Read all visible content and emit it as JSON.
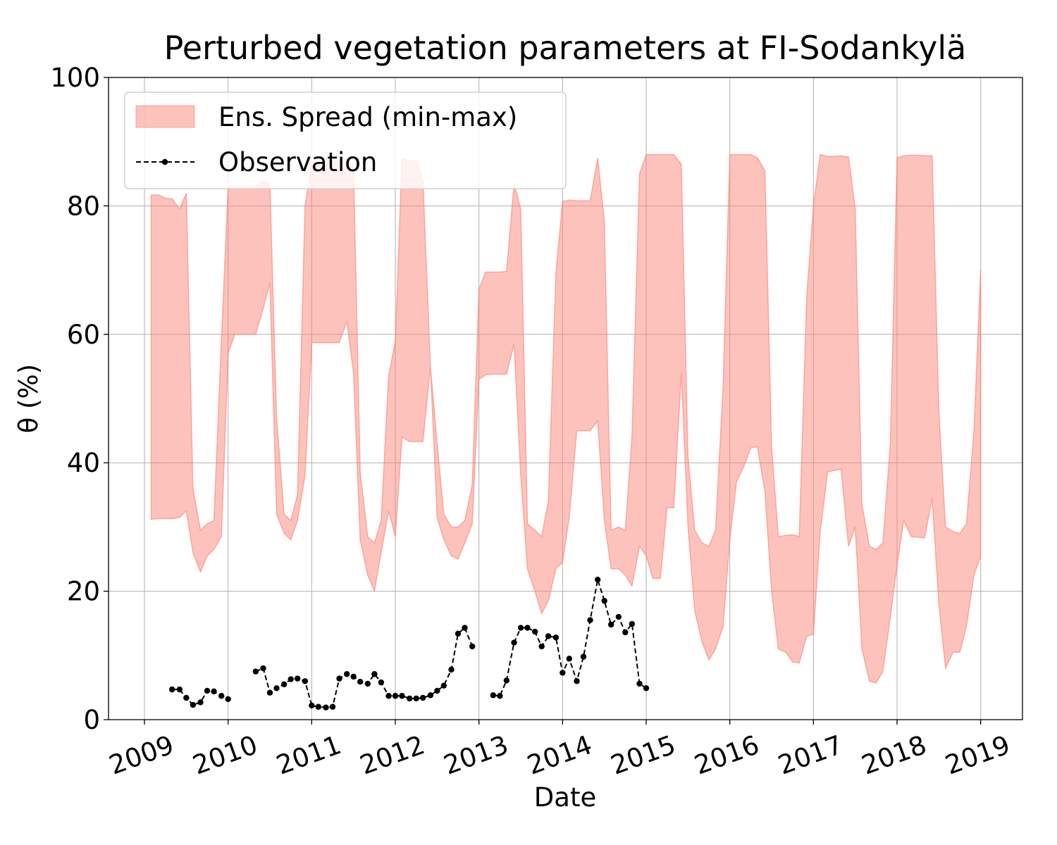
{
  "chart_data": {
    "type": "band-line",
    "title": "Perturbed vegetation parameters at FI-Sodankylä",
    "x_label": "Date",
    "y_label": "θ  (%)",
    "xlim": [
      2008.57,
      2019.5
    ],
    "xticks": [
      2009,
      2010,
      2011,
      2012,
      2013,
      2014,
      2015,
      2016,
      2017,
      2018,
      2019
    ],
    "ylim": [
      0,
      100
    ],
    "yticks": [
      0,
      20,
      40,
      60,
      80,
      100
    ],
    "grid": true,
    "legend": "upper-left",
    "series": [
      {
        "name": "Ens. Spread (min-max)",
        "kind": "band",
        "color": "#fa8072",
        "x": [
          2009.08,
          2009.17,
          2009.25,
          2009.33,
          2009.42,
          2009.5,
          2009.58,
          2009.67,
          2009.75,
          2009.83,
          2009.92,
          2010.0,
          2010.08,
          2010.17,
          2010.25,
          2010.33,
          2010.42,
          2010.5,
          2010.58,
          2010.67,
          2010.75,
          2010.83,
          2010.92,
          2011.0,
          2011.08,
          2011.17,
          2011.25,
          2011.33,
          2011.42,
          2011.5,
          2011.58,
          2011.67,
          2011.75,
          2011.83,
          2011.92,
          2012.0,
          2012.08,
          2012.17,
          2012.25,
          2012.33,
          2012.42,
          2012.5,
          2012.58,
          2012.67,
          2012.75,
          2012.83,
          2012.92,
          2013.0,
          2013.08,
          2013.17,
          2013.25,
          2013.33,
          2013.42,
          2013.5,
          2013.58,
          2013.67,
          2013.75,
          2013.83,
          2013.92,
          2014.0,
          2014.08,
          2014.17,
          2014.25,
          2014.33,
          2014.42,
          2014.5,
          2014.58,
          2014.67,
          2014.75,
          2014.83,
          2014.92,
          2015.0,
          2015.08,
          2015.17,
          2015.25,
          2015.33,
          2015.42,
          2015.5,
          2015.58,
          2015.67,
          2015.75,
          2015.83,
          2015.92,
          2016.0,
          2016.08,
          2016.17,
          2016.25,
          2016.33,
          2016.42,
          2016.5,
          2016.58,
          2016.67,
          2016.75,
          2016.83,
          2016.92,
          2017.0,
          2017.08,
          2017.17,
          2017.25,
          2017.33,
          2017.42,
          2017.5,
          2017.58,
          2017.67,
          2017.75,
          2017.83,
          2017.92,
          2018.0,
          2018.08,
          2018.17,
          2018.25,
          2018.33,
          2018.42,
          2018.5,
          2018.58,
          2018.67,
          2018.75,
          2018.83,
          2018.92,
          2019.0
        ],
        "upper": [
          81.7,
          81.7,
          81.2,
          81.1,
          79.5,
          82,
          36,
          29.5,
          30.5,
          31,
          59,
          83,
          83,
          83,
          83,
          83,
          83.8,
          83.5,
          47,
          32,
          31,
          35,
          80,
          87,
          87,
          87,
          87,
          87,
          87,
          86,
          38.5,
          28.5,
          27.5,
          31,
          53.5,
          59,
          87.5,
          87,
          87,
          84,
          55,
          43,
          32,
          30,
          30,
          31,
          36.5,
          67,
          69.7,
          69.7,
          69.7,
          69.8,
          83.5,
          79.5,
          30.5,
          29.5,
          28.5,
          34,
          69.5,
          80.7,
          80.9,
          80.8,
          80.8,
          80.8,
          87.5,
          77.5,
          29.5,
          30,
          29.5,
          44,
          85,
          88,
          88,
          88,
          88,
          88,
          86.5,
          41,
          29.5,
          27.5,
          27,
          29.5,
          52,
          88,
          88,
          88,
          88,
          87.5,
          85.5,
          42.5,
          28.5,
          28.7,
          28.8,
          28.5,
          66,
          80,
          88,
          87.7,
          87.7,
          87.8,
          87.6,
          79.5,
          33.5,
          27,
          26.5,
          27.5,
          43,
          87.5,
          87.8,
          87.9,
          87.9,
          87.8,
          87.8,
          48,
          30,
          29.3,
          29,
          30.5,
          45,
          70
        ],
        "lower": [
          31.2,
          31.3,
          31.3,
          31.3,
          31.5,
          32.5,
          26,
          23,
          25.5,
          26.5,
          28.5,
          57,
          60,
          60,
          60,
          60,
          64,
          68,
          32,
          29,
          28,
          31,
          38,
          58.7,
          58.7,
          58.7,
          58.7,
          58.7,
          62,
          54,
          28,
          22.5,
          20,
          26,
          32.5,
          28.5,
          44,
          43.3,
          43.3,
          43.3,
          55,
          31.5,
          28,
          25.5,
          25,
          27.5,
          30.5,
          53,
          53.7,
          53.8,
          53.8,
          53.8,
          58.5,
          38,
          23.5,
          20,
          16.5,
          18.5,
          23.5,
          24.5,
          31.5,
          45,
          45,
          45,
          46.5,
          31,
          23.5,
          23.5,
          22.5,
          20.8,
          27,
          25.5,
          22,
          22,
          33,
          33,
          54,
          30,
          17,
          12,
          9.3,
          11,
          14.5,
          28,
          37,
          39.5,
          42.3,
          42.5,
          35.5,
          20,
          11,
          10.5,
          9,
          8.8,
          13,
          13.3,
          29,
          38.6,
          38.8,
          39,
          27,
          30,
          11,
          6,
          5.7,
          7.5,
          16,
          24,
          31,
          28.5,
          28.4,
          28.3,
          34.5,
          18,
          8,
          10.5,
          10.5,
          14.5,
          22.5,
          25.5
        ]
      },
      {
        "name": "Observation",
        "kind": "line",
        "color": "#000000",
        "x": [
          2009.33,
          2009.42,
          2009.5,
          2009.58,
          2009.67,
          2009.75,
          2009.83,
          2009.92,
          2010.0,
          2010.17,
          2010.33,
          2010.42,
          2010.5,
          2010.58,
          2010.67,
          2010.75,
          2010.83,
          2010.92,
          2011.0,
          2011.08,
          2011.17,
          2011.25,
          2011.33,
          2011.42,
          2011.5,
          2011.58,
          2011.67,
          2011.75,
          2011.83,
          2011.92,
          2012.0,
          2012.08,
          2012.17,
          2012.25,
          2012.33,
          2012.42,
          2012.5,
          2012.58,
          2012.67,
          2012.75,
          2012.83,
          2012.92,
          2013.08,
          2013.17,
          2013.25,
          2013.33,
          2013.42,
          2013.5,
          2013.58,
          2013.67,
          2013.75,
          2013.83,
          2013.92,
          2014.0,
          2014.08,
          2014.17,
          2014.25,
          2014.33,
          2014.42,
          2014.5,
          2014.58,
          2014.67,
          2014.75,
          2014.83,
          2014.92,
          2015.0
        ],
        "values": [
          4.7,
          4.7,
          3.4,
          2.3,
          2.7,
          4.5,
          4.4,
          3.7,
          3.2,
          null,
          7.5,
          8.0,
          4.2,
          4.9,
          5.5,
          6.3,
          6.4,
          6.0,
          2.2,
          2.0,
          1.9,
          2.0,
          6.4,
          7.1,
          6.7,
          5.9,
          5.6,
          7.1,
          5.8,
          3.7,
          3.7,
          3.7,
          3.3,
          3.3,
          3.4,
          3.8,
          4.5,
          5.3,
          7.8,
          13.4,
          14.3,
          11.4,
          null,
          3.8,
          3.7,
          6.1,
          12.0,
          14.3,
          14.3,
          13.7,
          11.4,
          13.0,
          12.8,
          7.3,
          9.5,
          6.0,
          9.8,
          15.5,
          21.8,
          18.5,
          14.8,
          16.0,
          13.6,
          14.9,
          5.6,
          4.9
        ]
      }
    ]
  }
}
